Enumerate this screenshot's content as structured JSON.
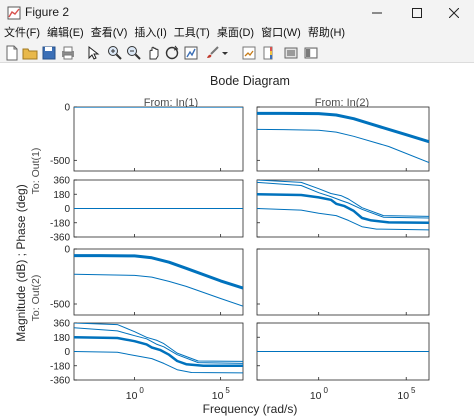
{
  "window": {
    "title": "Figure 2",
    "controls": [
      "minimize",
      "maximize",
      "close"
    ]
  },
  "menu": [
    "文件(F)",
    "编辑(E)",
    "查看(V)",
    "插入(I)",
    "工具(T)",
    "桌面(D)",
    "窗口(W)",
    "帮助(H)"
  ],
  "toolbar": [
    "new-figure-icon",
    "open-icon",
    "save-icon",
    "print-icon",
    "edit-plot-arrow-icon",
    "zoom-in-icon",
    "zoom-out-icon",
    "pan-hand-icon",
    "rotate-3d-icon",
    "data-cursor-icon",
    "brush-icon",
    "brush-dropdown-icon",
    "link-plot-icon",
    "insert-colorbar-icon",
    "hide-plot-tools-icon",
    "show-plot-tools-icon"
  ],
  "colors": {
    "line": "#0072bd",
    "axes": "#262626",
    "grid": "#ebebeb"
  },
  "chart_data": {
    "type": "line",
    "title": "Bode Diagram",
    "xlabel": "Frequency  (rad/s)",
    "ylabel": "Magnitude (dB) ; Phase (deg)",
    "x_scale": "log",
    "xlim": [
      0.0003,
      2000000
    ],
    "xticks": [
      1,
      100000
    ],
    "xtick_labels": [
      "10",
      "10"
    ],
    "xtick_exponents": [
      "0",
      "5"
    ],
    "grid": false,
    "columns": [
      "From: In(1)",
      "From: In(2)"
    ],
    "rows": [
      "To: Out(1)",
      "To: Out(2)"
    ],
    "panels": [
      {
        "input": "From: In(1)",
        "output": "To: Out(1)",
        "kind": "magnitude",
        "ylim": [
          -600,
          0
        ],
        "yticks": [
          0,
          -500
        ],
        "series": [
          {
            "x": [
              0.0003,
              2000000
            ],
            "y": [
              -1,
              -1
            ]
          }
        ]
      },
      {
        "input": "From: In(2)",
        "output": "To: Out(1)",
        "kind": "magnitude",
        "ylim": [
          -600,
          0
        ],
        "yticks": [
          0,
          -500
        ],
        "series": [
          {
            "x": [
              0.0003,
              0.01,
              1,
              10,
              100,
              1000,
              100000,
              2000000
            ],
            "y": [
              -60,
              -60,
              -62,
              -75,
              -110,
              -160,
              -260,
              -325
            ],
            "width": 3
          },
          {
            "x": [
              0.0003,
              0.01,
              1,
              10,
              100,
              10000,
              2000000
            ],
            "y": [
              -210,
              -212,
              -218,
              -235,
              -275,
              -370,
              -520
            ]
          }
        ]
      },
      {
        "input": "From: In(1)",
        "output": "To: Out(1)",
        "kind": "phase",
        "ylim": [
          -360,
          360
        ],
        "yticks": [
          360,
          180,
          0,
          -180,
          -360
        ],
        "series": [
          {
            "x": [
              0.0003,
              2000000
            ],
            "y": [
              0,
              0
            ]
          }
        ]
      },
      {
        "input": "From: In(2)",
        "output": "To: Out(1)",
        "kind": "phase",
        "ylim": [
          -360,
          360
        ],
        "yticks": [
          360,
          180,
          0,
          -180,
          -360
        ],
        "series": [
          {
            "x": [
              0.0003,
              0.1,
              1,
              5,
              20,
              50,
              300,
              5000,
              2000000
            ],
            "y": [
              360,
              330,
              250,
              190,
              160,
              120,
              10,
              -90,
              -100
            ]
          },
          {
            "x": [
              0.0003,
              0.1,
              1,
              5,
              20,
              50,
              300,
              5000,
              2000000
            ],
            "y": [
              330,
              290,
              200,
              150,
              100,
              70,
              -10,
              -110,
              -120
            ]
          },
          {
            "x": [
              0.0003,
              0.1,
              1,
              5,
              10,
              30,
              100,
              300,
              1000,
              10000,
              2000000
            ],
            "y": [
              180,
              170,
              140,
              110,
              60,
              30,
              -30,
              -120,
              -150,
              -175,
              -180
            ],
            "width": 2.5
          },
          {
            "x": [
              0.0003,
              0.1,
              1,
              10,
              50,
              300,
              2000,
              2000000
            ],
            "y": [
              0,
              -20,
              -60,
              -90,
              -150,
              -230,
              -260,
              -270
            ]
          }
        ]
      },
      {
        "input": "From: In(1)",
        "output": "To: Out(2)",
        "kind": "magnitude",
        "ylim": [
          -600,
          0
        ],
        "yticks": [
          0,
          -500
        ],
        "series": [
          {
            "x": [
              0.0003,
              0.01,
              1,
              10,
              100,
              1000,
              100000,
              2000000
            ],
            "y": [
              -60,
              -60,
              -63,
              -80,
              -120,
              -175,
              -290,
              -355
            ],
            "width": 3
          },
          {
            "x": [
              0.0003,
              1,
              10,
              100,
              1000,
              100000,
              2000000
            ],
            "y": [
              -230,
              -240,
              -255,
              -295,
              -340,
              -450,
              -520
            ]
          }
        ]
      },
      {
        "input": "From: In(2)",
        "output": "To: Out(2)",
        "kind": "magnitude",
        "ylim": [
          -600,
          0
        ],
        "yticks": [
          0,
          -500
        ],
        "series": []
      },
      {
        "input": "From: In(1)",
        "output": "To: Out(2)",
        "kind": "phase",
        "ylim": [
          -360,
          360
        ],
        "yticks": [
          360,
          180,
          0,
          -180,
          -360
        ],
        "series": [
          {
            "x": [
              0.0003,
              0.1,
              1,
              5,
              20,
              50,
              300,
              5000,
              2000000
            ],
            "y": [
              360,
              340,
              250,
              180,
              140,
              100,
              -20,
              -120,
              -125
            ]
          },
          {
            "x": [
              0.0003,
              0.1,
              1,
              5,
              20,
              50,
              300,
              5000,
              2000000
            ],
            "y": [
              300,
              260,
              200,
              160,
              90,
              60,
              -40,
              -140,
              -150
            ]
          },
          {
            "x": [
              0.0003,
              0.1,
              1,
              5,
              10,
              30,
              100,
              300,
              1000,
              10000,
              2000000
            ],
            "y": [
              180,
              170,
              130,
              90,
              50,
              20,
              -40,
              -120,
              -160,
              -180,
              -180
            ],
            "width": 2.5
          },
          {
            "x": [
              0.0003,
              0.1,
              1,
              10,
              50,
              300,
              2000,
              2000000
            ],
            "y": [
              0,
              -10,
              -50,
              -90,
              -150,
              -230,
              -265,
              -270
            ]
          }
        ]
      },
      {
        "input": "From: In(2)",
        "output": "To: Out(2)",
        "kind": "phase",
        "ylim": [
          -360,
          360
        ],
        "yticks": [
          360,
          180,
          0,
          -180,
          -360
        ],
        "series": [
          {
            "x": [
              0.0003,
              2000000
            ],
            "y": [
              0,
              0
            ]
          }
        ]
      }
    ]
  }
}
